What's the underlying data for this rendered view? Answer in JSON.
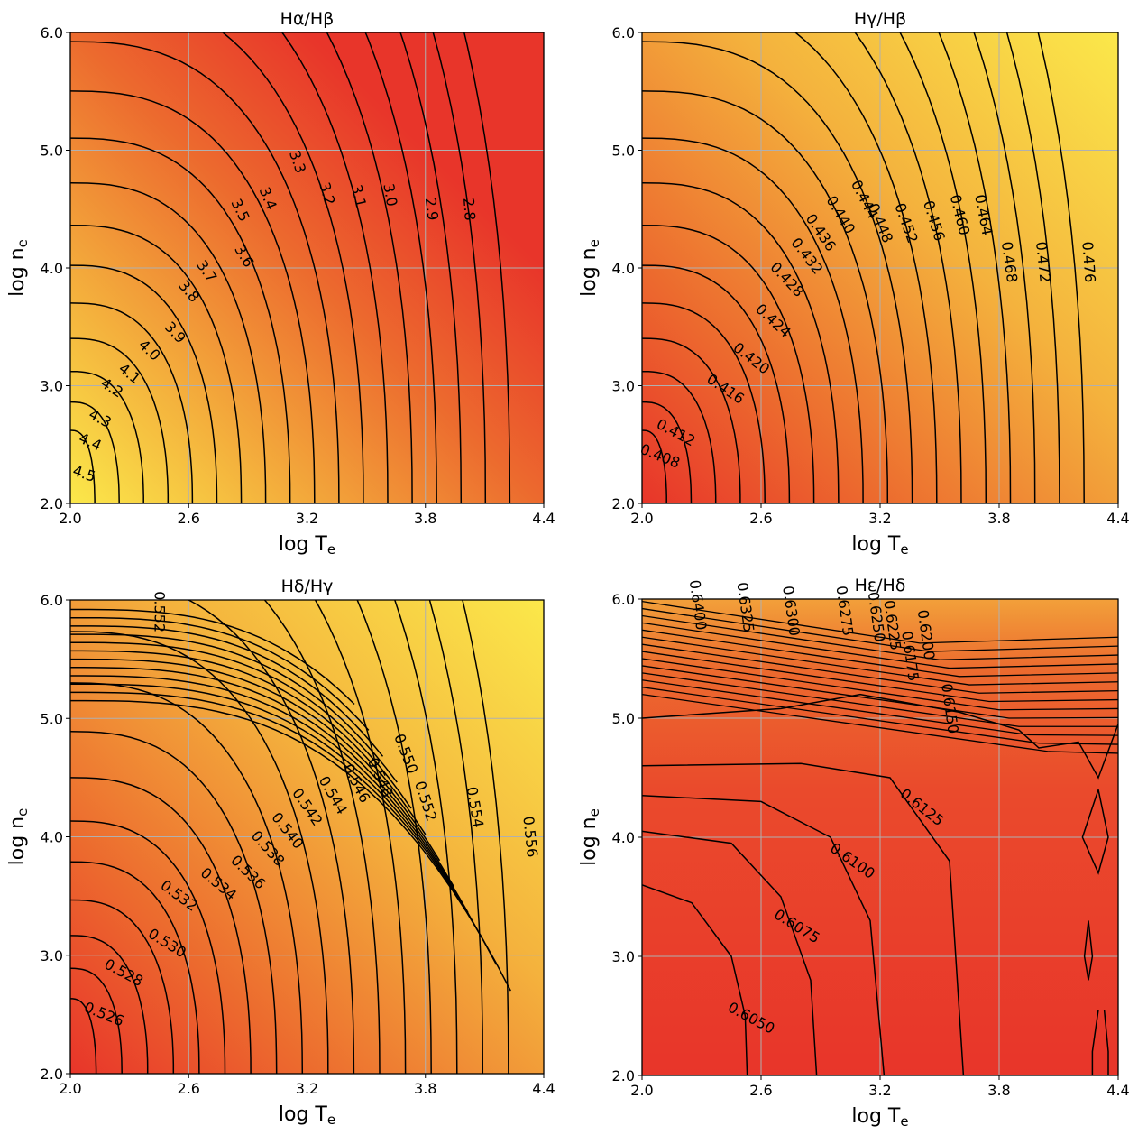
{
  "chart_data": [
    {
      "type": "contour",
      "title": "Hα/Hβ",
      "xlabel": "log T",
      "xlabel_sub": "e",
      "ylabel": "log n",
      "ylabel_sub": "e",
      "xlim": [
        2.0,
        4.4
      ],
      "ylim": [
        2.0,
        6.0
      ],
      "xticks": [
        "2.0",
        "2.6",
        "3.2",
        "3.8",
        "4.4"
      ],
      "yticks": [
        "2.0",
        "3.0",
        "4.0",
        "5.0",
        "6.0"
      ],
      "grid": true,
      "colormap": "autumn_r",
      "color_low": "#e8352a",
      "color_high": "#fbe84a",
      "field": {
        "center": [
          2.0,
          2.0
        ],
        "t_radius": 2.4,
        "n_radius": 3.6,
        "base": 2.78,
        "span": 1.9,
        "shape": 2.4
      },
      "levels": [
        "4.5",
        "4.4",
        "4.3",
        "4.2",
        "4.1",
        "4.0",
        "3.9",
        "3.8",
        "3.7",
        "3.6",
        "3.5",
        "3.4",
        "3.3",
        "3.2",
        "3.1",
        "3.0",
        "2.9",
        "2.8"
      ],
      "label_points": [
        [
          2.07,
          2.25
        ],
        [
          2.1,
          2.52
        ],
        [
          2.15,
          2.72
        ],
        [
          2.21,
          2.98
        ],
        [
          2.3,
          3.1
        ],
        [
          2.4,
          3.3
        ],
        [
          2.53,
          3.45
        ],
        [
          2.6,
          3.8
        ],
        [
          2.69,
          3.97
        ],
        [
          2.88,
          4.1
        ],
        [
          2.86,
          4.49
        ],
        [
          3.0,
          4.59
        ],
        [
          3.15,
          4.9
        ],
        [
          3.3,
          4.63
        ],
        [
          3.46,
          4.61
        ],
        [
          3.62,
          4.62
        ],
        [
          3.83,
          4.5
        ],
        [
          4.02,
          4.5
        ]
      ],
      "label_angles": [
        -72,
        -66,
        -62,
        -57,
        -52,
        -47,
        -43,
        -40,
        -35,
        -31,
        -26,
        -22,
        -19,
        -16,
        -13,
        -10,
        -7,
        -4
      ]
    },
    {
      "type": "contour",
      "title": "Hγ/Hβ",
      "xlabel": "log T",
      "xlabel_sub": "e",
      "ylabel": "log n",
      "ylabel_sub": "e",
      "xlim": [
        2.0,
        4.4
      ],
      "ylim": [
        2.0,
        6.0
      ],
      "xticks": [
        "2.0",
        "2.6",
        "3.2",
        "3.8",
        "4.4"
      ],
      "yticks": [
        "2.0",
        "3.0",
        "4.0",
        "5.0",
        "6.0"
      ],
      "grid": true,
      "colormap": "autumn",
      "color_low": "#e8352a",
      "color_high": "#fbe84a",
      "field": {
        "center": [
          2.0,
          2.0
        ],
        "t_radius": 2.5,
        "n_radius": 3.9,
        "base": 0.478,
        "span": 0.072,
        "shape": 2.4
      },
      "levels": [
        "0.408",
        "0.412",
        "0.416",
        "0.420",
        "0.424",
        "0.428",
        "0.432",
        "0.436",
        "0.440",
        "0.444",
        "0.448",
        "0.452",
        "0.456",
        "0.460",
        "0.464",
        "0.468",
        "0.472",
        "0.476"
      ],
      "label_points": [
        [
          2.09,
          2.4
        ],
        [
          2.17,
          2.6
        ],
        [
          2.42,
          2.97
        ],
        [
          2.55,
          3.23
        ],
        [
          2.66,
          3.55
        ],
        [
          2.73,
          3.9
        ],
        [
          2.83,
          4.1
        ],
        [
          2.9,
          4.3
        ],
        [
          3.0,
          4.45
        ],
        [
          3.12,
          4.58
        ],
        [
          3.2,
          4.38
        ],
        [
          3.33,
          4.38
        ],
        [
          3.47,
          4.4
        ],
        [
          3.6,
          4.45
        ],
        [
          3.72,
          4.45
        ],
        [
          3.85,
          4.05
        ],
        [
          4.02,
          4.05
        ],
        [
          4.25,
          4.05
        ]
      ],
      "label_angles": [
        -68,
        -62,
        -56,
        -52,
        -47,
        -43,
        -38,
        -34,
        -31,
        -27,
        -23,
        -20,
        -17,
        -14,
        -11,
        -8,
        -6,
        -4
      ]
    },
    {
      "type": "contour",
      "title": "Hδ/Hγ",
      "xlabel": "log T",
      "xlabel_sub": "e",
      "ylabel": "log n",
      "ylabel_sub": "e",
      "xlim": [
        2.0,
        4.4
      ],
      "ylim": [
        2.0,
        6.0
      ],
      "xticks": [
        "2.0",
        "2.6",
        "3.2",
        "3.8",
        "4.4"
      ],
      "yticks": [
        "2.0",
        "3.0",
        "4.0",
        "5.0",
        "6.0"
      ],
      "grid": true,
      "colormap": "autumn",
      "color_low": "#e8352a",
      "color_high": "#fbe84a",
      "field": {
        "center": [
          2.0,
          2.0
        ],
        "t_radius": 2.5,
        "n_radius": 3.9,
        "base": 0.558,
        "span": 0.034,
        "shape": 2.4
      },
      "levels": [
        "0.526",
        "0.528",
        "0.530",
        "0.532",
        "0.534",
        "0.536",
        "0.538",
        "0.540",
        "0.542",
        "0.544",
        "0.546",
        "0.548",
        "0.550",
        "0.552",
        "0.554",
        "0.556",
        "0.552"
      ],
      "label_points": [
        [
          2.17,
          2.5
        ],
        [
          2.27,
          2.85
        ],
        [
          2.49,
          3.1
        ],
        [
          2.55,
          3.5
        ],
        [
          2.75,
          3.6
        ],
        [
          2.9,
          3.7
        ],
        [
          3.0,
          3.9
        ],
        [
          3.1,
          4.05
        ],
        [
          3.2,
          4.25
        ],
        [
          3.33,
          4.35
        ],
        [
          3.45,
          4.45
        ],
        [
          3.57,
          4.5
        ],
        [
          3.7,
          4.7
        ],
        [
          3.8,
          4.3
        ],
        [
          4.05,
          4.25
        ],
        [
          4.33,
          4.0
        ],
        [
          2.45,
          5.9
        ]
      ],
      "label_angles": [
        -68,
        -62,
        -58,
        -54,
        -50,
        -46,
        -42,
        -38,
        -34,
        -30,
        -27,
        -24,
        -21,
        -18,
        -10,
        -6,
        0
      ]
    },
    {
      "type": "contour",
      "title": "Hε/Hδ",
      "xlabel": "log T",
      "xlabel_sub": "e",
      "ylabel": "log n",
      "ylabel_sub": "e",
      "xlim": [
        2.0,
        4.4
      ],
      "ylim": [
        2.0,
        6.0
      ],
      "xticks": [
        "2.0",
        "2.6",
        "3.2",
        "3.8",
        "4.4"
      ],
      "yticks": [
        "2.0",
        "3.0",
        "4.0",
        "5.0",
        "6.0"
      ],
      "grid": true,
      "colormap": "autumn",
      "color_low": "#e8352a",
      "color_high": "#fbe84a",
      "levels": [
        "0.6050",
        "0.6075",
        "0.6100",
        "0.6125",
        "0.6150",
        "0.6175",
        "0.6200",
        "0.6225",
        "0.6250",
        "0.6275",
        "0.6300",
        "0.6325",
        "0.6400"
      ],
      "label_points": [
        [
          2.55,
          2.48
        ],
        [
          2.78,
          3.25
        ],
        [
          3.06,
          3.8
        ],
        [
          3.41,
          4.25
        ],
        [
          3.55,
          5.08
        ],
        [
          3.35,
          5.52
        ],
        [
          3.43,
          5.7
        ],
        [
          3.26,
          5.78
        ],
        [
          3.18,
          5.85
        ],
        [
          3.02,
          5.9
        ],
        [
          2.75,
          5.9
        ],
        [
          2.52,
          5.93
        ],
        [
          2.28,
          5.95
        ]
      ],
      "label_angles": [
        -62,
        -58,
        -55,
        -52,
        -8,
        -8,
        -8,
        -8,
        -8,
        -8,
        -8,
        -8,
        -8
      ]
    }
  ]
}
